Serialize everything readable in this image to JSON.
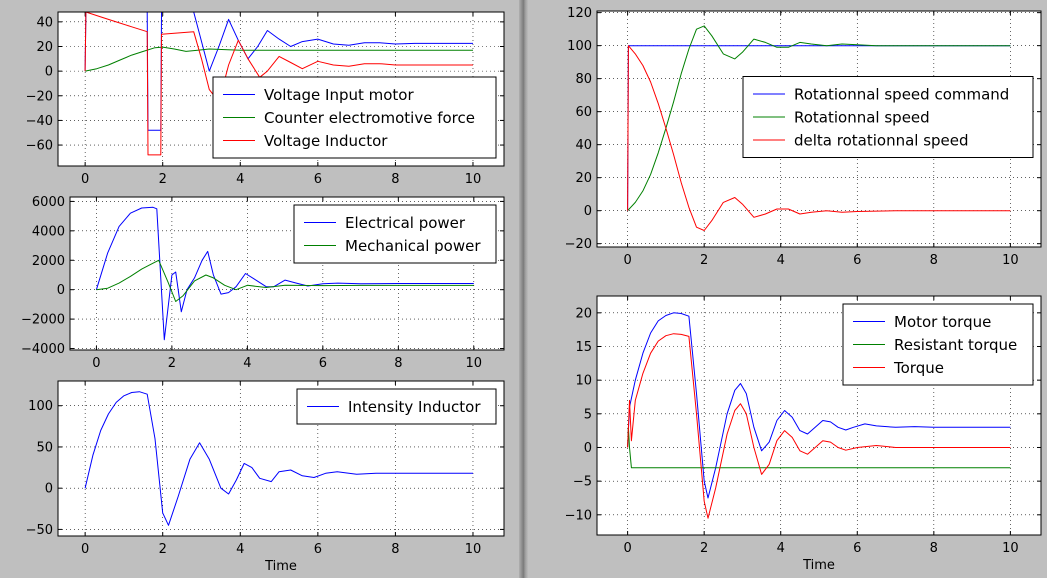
{
  "windows": {
    "left": {
      "xlabel": "Time"
    },
    "right": {
      "xlabel": "Time"
    }
  },
  "colors": {
    "blue": "#0000ff",
    "green": "#008000",
    "red": "#ff0000",
    "grid": "#000000",
    "background": "#bfbfbf"
  },
  "chart_data": [
    {
      "type": "line",
      "window": "left",
      "title": "",
      "xlabel": "",
      "ylabel": "",
      "xlim": [
        -0.7,
        10.8
      ],
      "ylim": [
        -77,
        48
      ],
      "xticks": [
        0,
        2,
        4,
        6,
        8,
        10
      ],
      "yticks": [
        -60,
        -40,
        -20,
        0,
        20,
        40
      ],
      "grid": true,
      "legend": "lower-right",
      "series": [
        {
          "name": "Voltage Input motor",
          "color": "#0000ff",
          "x": [
            0,
            0.02,
            1.6,
            1.62,
            1.95,
            1.97,
            2.8,
            2.95,
            3.2,
            3.45,
            3.7,
            3.95,
            4.2,
            4.45,
            4.7,
            5.0,
            5.3,
            5.6,
            6.0,
            6.4,
            6.8,
            7.2,
            7.6,
            8.0,
            8.5,
            9.0,
            9.5,
            10
          ],
          "y": [
            0,
            48,
            48,
            -48,
            -48,
            48,
            48,
            30,
            0,
            20,
            42,
            25,
            10,
            20,
            33,
            26,
            20,
            24,
            26,
            22,
            21,
            23,
            23,
            22,
            22.5,
            22.5,
            22.5,
            22.5
          ]
        },
        {
          "name": "Counter electromotive force",
          "color": "#008000",
          "x": [
            0,
            0.3,
            0.6,
            0.9,
            1.2,
            1.5,
            1.8,
            2.0,
            2.3,
            2.6,
            2.9,
            3.2,
            3.6,
            4.0,
            5.0,
            6.0,
            7.0,
            8.0,
            9.0,
            10
          ],
          "y": [
            0,
            2,
            5,
            9,
            13,
            16,
            19,
            19.5,
            18,
            16,
            17,
            18,
            17.5,
            17,
            17,
            17,
            17,
            17,
            17,
            17
          ]
        },
        {
          "name": "Voltage Inductor",
          "color": "#ff0000",
          "x": [
            0,
            0.02,
            0.4,
            0.8,
            1.2,
            1.6,
            1.62,
            1.95,
            1.97,
            2.8,
            3.0,
            3.2,
            3.45,
            3.7,
            3.95,
            4.2,
            4.5,
            4.7,
            5.0,
            5.3,
            5.6,
            6.0,
            6.4,
            6.8,
            7.2,
            7.6,
            8.0,
            9.0,
            10
          ],
          "y": [
            0,
            48,
            44,
            40,
            36,
            32,
            -68,
            -68,
            30,
            32,
            10,
            -15,
            -25,
            5,
            25,
            10,
            -5,
            0,
            12,
            7,
            2,
            8,
            5,
            4,
            6,
            6,
            5,
            5,
            5
          ]
        }
      ]
    },
    {
      "type": "line",
      "window": "left",
      "title": "",
      "xlabel": "",
      "ylabel": "",
      "xlim": [
        -0.7,
        10.8
      ],
      "ylim": [
        -4100,
        6300
      ],
      "xticks": [
        0,
        2,
        4,
        6,
        8,
        10
      ],
      "yticks": [
        -4000,
        -2000,
        0,
        2000,
        4000,
        6000
      ],
      "grid": true,
      "legend": "top-right",
      "series": [
        {
          "name": "Electrical power",
          "color": "#0000ff",
          "x": [
            0,
            0.3,
            0.6,
            0.9,
            1.2,
            1.5,
            1.6,
            1.8,
            2.0,
            2.1,
            2.25,
            2.4,
            2.6,
            2.8,
            2.95,
            3.1,
            3.3,
            3.5,
            3.7,
            3.95,
            4.2,
            4.5,
            4.7,
            5.0,
            5.3,
            5.6,
            6.0,
            6.4,
            7.0,
            8.0,
            9.0,
            10
          ],
          "y": [
            0,
            2500,
            4300,
            5200,
            5550,
            5600,
            5500,
            -3400,
            1000,
            1200,
            -1500,
            0,
            800,
            2000,
            2600,
            1000,
            -300,
            -200,
            200,
            1100,
            700,
            200,
            200,
            650,
            450,
            250,
            400,
            450,
            400,
            420,
            420,
            420
          ]
        },
        {
          "name": "Mechanical power",
          "color": "#008000",
          "x": [
            0,
            0.3,
            0.6,
            0.9,
            1.2,
            1.5,
            1.65,
            1.9,
            2.1,
            2.3,
            2.6,
            2.9,
            3.1,
            3.4,
            3.7,
            4.0,
            4.5,
            5.0,
            6.0,
            7.0,
            8.0,
            9.0,
            10
          ],
          "y": [
            0,
            100,
            450,
            900,
            1400,
            1800,
            2000,
            500,
            -800,
            -400,
            600,
            1000,
            800,
            300,
            0,
            300,
            150,
            300,
            280,
            290,
            290,
            290,
            290
          ]
        }
      ]
    },
    {
      "type": "line",
      "window": "left",
      "title": "",
      "xlabel": "Time",
      "ylabel": "",
      "xlim": [
        -0.7,
        10.8
      ],
      "ylim": [
        -58,
        130
      ],
      "xticks": [
        0,
        2,
        4,
        6,
        8,
        10
      ],
      "yticks": [
        -50,
        0,
        50,
        100
      ],
      "grid": true,
      "legend": "top-right",
      "series": [
        {
          "name": "Intensity Inductor",
          "color": "#0000ff",
          "x": [
            0,
            0.2,
            0.4,
            0.6,
            0.8,
            1.0,
            1.2,
            1.4,
            1.6,
            1.8,
            2.0,
            2.15,
            2.4,
            2.7,
            2.95,
            3.2,
            3.5,
            3.7,
            3.9,
            4.1,
            4.3,
            4.5,
            4.8,
            5.0,
            5.3,
            5.6,
            5.9,
            6.2,
            6.5,
            7.0,
            7.5,
            8.0,
            9.0,
            10
          ],
          "y": [
            0,
            40,
            70,
            90,
            104,
            112,
            116,
            117,
            114,
            60,
            -30,
            -45,
            -10,
            35,
            55,
            35,
            0,
            -7,
            10,
            30,
            25,
            12,
            8,
            20,
            22,
            15,
            13,
            18,
            20,
            17,
            18,
            18,
            18,
            18
          ]
        }
      ]
    },
    {
      "type": "line",
      "window": "right",
      "title": "",
      "xlabel": "",
      "ylabel": "",
      "xlim": [
        -0.8,
        10.8
      ],
      "ylim": [
        -22,
        121
      ],
      "xticks": [
        0,
        2,
        4,
        6,
        8,
        10
      ],
      "yticks": [
        -20,
        0,
        20,
        40,
        60,
        80,
        100,
        120
      ],
      "grid": true,
      "legend": "center-right",
      "series": [
        {
          "name": "Rotationnal speed command",
          "color": "#0000ff",
          "x": [
            0,
            0.02,
            10
          ],
          "y": [
            0,
            100,
            100
          ]
        },
        {
          "name": "Rotationnal speed",
          "color": "#008000",
          "x": [
            0,
            0.2,
            0.4,
            0.6,
            0.8,
            1.0,
            1.2,
            1.4,
            1.6,
            1.8,
            2.0,
            2.2,
            2.5,
            2.8,
            3.0,
            3.3,
            3.6,
            3.9,
            4.2,
            4.5,
            4.8,
            5.2,
            5.6,
            6.0,
            6.5,
            7.0,
            8.0,
            9.0,
            10
          ],
          "y": [
            0,
            5,
            12,
            22,
            35,
            50,
            66,
            83,
            98,
            110,
            112,
            106,
            95,
            92,
            96,
            104,
            102,
            99,
            99,
            102,
            101,
            100,
            101,
            100.5,
            100,
            100,
            100,
            100,
            100
          ]
        },
        {
          "name": "delta rotationnal speed",
          "color": "#ff0000",
          "x": [
            0,
            0.02,
            0.2,
            0.4,
            0.6,
            0.8,
            1.0,
            1.2,
            1.4,
            1.6,
            1.8,
            2.0,
            2.2,
            2.5,
            2.8,
            3.0,
            3.3,
            3.6,
            3.9,
            4.2,
            4.5,
            4.8,
            5.2,
            5.6,
            6.0,
            7.0,
            8.0,
            9.0,
            10
          ],
          "y": [
            0,
            100,
            95,
            88,
            78,
            65,
            50,
            34,
            17,
            2,
            -10,
            -12,
            -6,
            5,
            8,
            4,
            -4,
            -2,
            1,
            1,
            -2,
            -1,
            0,
            -1,
            -0.5,
            0,
            0,
            0,
            0
          ]
        }
      ]
    },
    {
      "type": "line",
      "window": "right",
      "title": "",
      "xlabel": "Time",
      "ylabel": "",
      "xlim": [
        -0.8,
        10.8
      ],
      "ylim": [
        -13,
        22.5
      ],
      "xticks": [
        0,
        2,
        4,
        6,
        8,
        10
      ],
      "yticks": [
        -10,
        -5,
        0,
        5,
        10,
        15,
        20
      ],
      "grid": true,
      "legend": "top-right",
      "series": [
        {
          "name": "Motor torque",
          "color": "#0000ff",
          "x": [
            0,
            0.05,
            0.2,
            0.4,
            0.6,
            0.8,
            1.0,
            1.2,
            1.4,
            1.6,
            1.8,
            2.0,
            2.1,
            2.3,
            2.6,
            2.8,
            2.95,
            3.1,
            3.3,
            3.5,
            3.7,
            3.9,
            4.1,
            4.3,
            4.5,
            4.7,
            4.9,
            5.1,
            5.3,
            5.5,
            5.7,
            5.9,
            6.2,
            6.5,
            7.0,
            7.5,
            8.0,
            9.0,
            10
          ],
          "y": [
            0,
            6,
            10,
            14,
            17,
            18.8,
            19.6,
            20,
            19.9,
            19.5,
            8,
            -5,
            -7.5,
            -3,
            5,
            8.5,
            9.5,
            8,
            3,
            -0.5,
            0.8,
            4,
            5.5,
            4.5,
            2.5,
            2,
            3,
            4,
            3.8,
            3,
            2.6,
            3,
            3.5,
            3.2,
            3,
            3.1,
            3,
            3,
            3
          ]
        },
        {
          "name": "Resistant torque",
          "color": "#008000",
          "x": [
            0,
            0.02,
            0.05,
            0.1,
            10
          ],
          "y": [
            0,
            3,
            0,
            -3,
            -3
          ]
        },
        {
          "name": "Torque",
          "color": "#ff0000",
          "x": [
            0,
            0.05,
            0.1,
            0.2,
            0.4,
            0.6,
            0.8,
            1.0,
            1.2,
            1.4,
            1.6,
            1.8,
            2.0,
            2.1,
            2.3,
            2.6,
            2.8,
            2.95,
            3.1,
            3.3,
            3.5,
            3.7,
            3.9,
            4.1,
            4.3,
            4.5,
            4.7,
            4.9,
            5.1,
            5.3,
            5.5,
            5.7,
            6.0,
            6.5,
            7.0,
            8.0,
            9.0,
            10
          ],
          "y": [
            0,
            7,
            1,
            7,
            11,
            14,
            15.8,
            16.6,
            16.9,
            16.8,
            16.5,
            5,
            -8,
            -10.5,
            -6,
            2,
            5.5,
            6.5,
            5,
            0,
            -4,
            -2.5,
            1,
            2.5,
            1.5,
            -0.5,
            -1,
            0,
            1,
            0.8,
            0,
            -0.4,
            0,
            0.3,
            0,
            0,
            0,
            0
          ]
        }
      ]
    }
  ]
}
